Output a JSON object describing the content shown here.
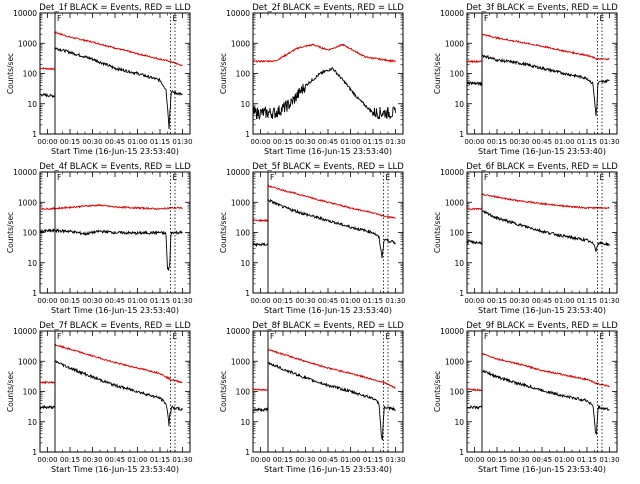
{
  "x_label": "Start Time (16-Jun-15 23:53:40)",
  "y_label": "Counts/sec",
  "x_ticks": [
    "00:00",
    "00:15",
    "00:30",
    "00:45",
    "01:00",
    "01:15",
    "01:30"
  ],
  "y_ticks": [
    "1",
    "10",
    "100",
    "1000",
    "10000"
  ],
  "marker_label": "F",
  "marker_label_end": "E",
  "colors": {
    "events": "#000000",
    "lld": "#e00000",
    "axis": "#000000"
  },
  "chart_data": [
    {
      "type": "line",
      "title": "Det_1f BLACK = Events, RED = LLD",
      "xlabel": "Start Time (16-Jun-15 23:53:40)",
      "ylabel": "Counts/sec",
      "x_unit": "minutes after 00:00",
      "xlim": [
        -5,
        95
      ],
      "ylim": [
        1,
        10000
      ],
      "log_y": true,
      "start_marker": 5,
      "end_markers": [
        82,
        85
      ],
      "series": [
        {
          "name": "LLD",
          "color": "#e00000",
          "x": [
            -5,
            4.9,
            5,
            15,
            30,
            45,
            60,
            75,
            82,
            90
          ],
          "y": [
            150,
            140,
            2300,
            1600,
            1100,
            700,
            450,
            300,
            250,
            180
          ]
        },
        {
          "name": "Events",
          "color": "#000000",
          "x": [
            -5,
            4.9,
            5,
            15,
            30,
            45,
            60,
            75,
            79,
            81,
            82.5,
            90
          ],
          "y": [
            20,
            18,
            700,
            500,
            300,
            150,
            100,
            60,
            30,
            2,
            25,
            20
          ]
        }
      ]
    },
    {
      "type": "line",
      "title": "Det_2f BLACK = Events, RED = LLD",
      "xlabel": "Start Time (16-Jun-15 23:53:40)",
      "ylabel": "Counts/sec",
      "x_unit": "minutes after 00:00",
      "xlim": [
        -5,
        95
      ],
      "ylim": [
        1,
        10000
      ],
      "log_y": true,
      "start_marker": null,
      "end_markers": [],
      "series": [
        {
          "name": "LLD",
          "color": "#e00000",
          "x": [
            -5,
            10,
            25,
            35,
            45,
            55,
            70,
            90
          ],
          "y": [
            250,
            260,
            700,
            900,
            600,
            900,
            350,
            250
          ]
        },
        {
          "name": "Events",
          "color": "#000000",
          "x": [
            -5,
            10,
            20,
            30,
            40,
            48,
            55,
            65,
            75,
            90
          ],
          "y": [
            5,
            5,
            10,
            40,
            100,
            150,
            60,
            15,
            5,
            5
          ]
        }
      ]
    },
    {
      "type": "line",
      "title": "Det_3f BLACK = Events, RED = LLD",
      "xlabel": "Start Time (16-Jun-15 23:53:40)",
      "ylabel": "Counts/sec",
      "x_unit": "minutes after 00:00",
      "xlim": [
        -5,
        95
      ],
      "ylim": [
        1,
        10000
      ],
      "log_y": true,
      "start_marker": 5,
      "end_markers": [
        82,
        85
      ],
      "series": [
        {
          "name": "LLD",
          "color": "#e00000",
          "x": [
            -5,
            4.9,
            5,
            15,
            30,
            45,
            60,
            75,
            82,
            90
          ],
          "y": [
            250,
            250,
            2000,
            1500,
            1100,
            800,
            550,
            400,
            300,
            300
          ]
        },
        {
          "name": "Events",
          "color": "#000000",
          "x": [
            -5,
            4.9,
            5,
            15,
            30,
            45,
            60,
            75,
            79,
            81,
            82.5,
            90
          ],
          "y": [
            50,
            45,
            400,
            280,
            220,
            150,
            100,
            70,
            45,
            4,
            50,
            60
          ]
        }
      ]
    },
    {
      "type": "line",
      "title": "Det_4f BLACK = Events, RED = LLD",
      "xlabel": "Start Time (16-Jun-15 23:53:40)",
      "ylabel": "Counts/sec",
      "x_unit": "minutes after 00:00",
      "xlim": [
        -5,
        95
      ],
      "ylim": [
        1,
        10000
      ],
      "log_y": true,
      "start_marker": 5,
      "end_markers": [
        82,
        85
      ],
      "series": [
        {
          "name": "LLD",
          "color": "#e00000",
          "x": [
            -5,
            5,
            15,
            25,
            35,
            45,
            60,
            75,
            82,
            90
          ],
          "y": [
            600,
            620,
            680,
            750,
            800,
            700,
            650,
            600,
            650,
            650
          ]
        },
        {
          "name": "Events",
          "color": "#000000",
          "x": [
            -5,
            5,
            15,
            25,
            35,
            45,
            60,
            75,
            79,
            80,
            81,
            82.5,
            90
          ],
          "y": [
            110,
            115,
            110,
            90,
            110,
            100,
            95,
            100,
            90,
            6,
            5,
            100,
            100
          ]
        }
      ]
    },
    {
      "type": "line",
      "title": "Det_5f BLACK = Events, RED = LLD",
      "xlabel": "Start Time (16-Jun-15 23:53:40)",
      "ylabel": "Counts/sec",
      "x_unit": "minutes after 00:00",
      "xlim": [
        -5,
        95
      ],
      "ylim": [
        1,
        10000
      ],
      "log_y": true,
      "start_marker": 5,
      "end_markers": [
        82,
        85
      ],
      "series": [
        {
          "name": "LLD",
          "color": "#e00000",
          "x": [
            -5,
            4.9,
            5,
            15,
            30,
            45,
            60,
            75,
            82,
            90
          ],
          "y": [
            250,
            250,
            3500,
            2500,
            1600,
            1000,
            650,
            450,
            350,
            300
          ]
        },
        {
          "name": "Events",
          "color": "#000000",
          "x": [
            -5,
            4.9,
            5,
            15,
            30,
            45,
            60,
            75,
            79,
            81,
            82.5,
            90
          ],
          "y": [
            40,
            40,
            1200,
            700,
            400,
            250,
            150,
            100,
            70,
            15,
            60,
            45
          ]
        }
      ]
    },
    {
      "type": "line",
      "title": "Det_6f BLACK = Events, RED = LLD",
      "xlabel": "Start Time (16-Jun-15 23:53:40)",
      "ylabel": "Counts/sec",
      "x_unit": "minutes after 00:00",
      "xlim": [
        -5,
        95
      ],
      "ylim": [
        1,
        10000
      ],
      "log_y": true,
      "start_marker": 5,
      "end_markers": [
        82,
        85
      ],
      "series": [
        {
          "name": "LLD",
          "color": "#e00000",
          "x": [
            -5,
            4.9,
            5,
            15,
            30,
            45,
            60,
            75,
            90
          ],
          "y": [
            600,
            600,
            1800,
            1500,
            1100,
            900,
            750,
            650,
            650
          ]
        },
        {
          "name": "Events",
          "color": "#000000",
          "x": [
            -5,
            4.9,
            5,
            15,
            30,
            45,
            60,
            75,
            80,
            81,
            82.5,
            90
          ],
          "y": [
            50,
            45,
            500,
            300,
            180,
            110,
            75,
            55,
            40,
            25,
            45,
            40
          ]
        }
      ]
    },
    {
      "type": "line",
      "title": "Det_7f BLACK = Events, RED = LLD",
      "xlabel": "Start Time (16-Jun-15 23:53:40)",
      "ylabel": "Counts/sec",
      "x_unit": "minutes after 00:00",
      "xlim": [
        -5,
        95
      ],
      "ylim": [
        1,
        10000
      ],
      "log_y": true,
      "start_marker": 5,
      "end_markers": [
        82,
        85
      ],
      "series": [
        {
          "name": "LLD",
          "color": "#e00000",
          "x": [
            -5,
            4.9,
            5,
            15,
            30,
            45,
            60,
            75,
            82,
            90
          ],
          "y": [
            200,
            200,
            3500,
            2500,
            1500,
            900,
            600,
            400,
            250,
            200
          ]
        },
        {
          "name": "Events",
          "color": "#000000",
          "x": [
            -5,
            4.9,
            5,
            15,
            30,
            45,
            60,
            75,
            79,
            81,
            82.5,
            90
          ],
          "y": [
            30,
            30,
            1000,
            600,
            300,
            160,
            100,
            60,
            40,
            10,
            30,
            25
          ]
        }
      ]
    },
    {
      "type": "line",
      "title": "Det_8f BLACK = Events, RED = LLD",
      "xlabel": "Start Time (16-Jun-15 23:53:40)",
      "ylabel": "Counts/sec",
      "x_unit": "minutes after 00:00",
      "xlim": [
        -5,
        95
      ],
      "ylim": [
        1,
        10000
      ],
      "log_y": true,
      "start_marker": 5,
      "end_markers": [
        82,
        85
      ],
      "series": [
        {
          "name": "LLD",
          "color": "#e00000",
          "x": [
            -5,
            4.9,
            5,
            15,
            30,
            45,
            60,
            75,
            82,
            90
          ],
          "y": [
            120,
            110,
            2500,
            1700,
            1000,
            600,
            400,
            250,
            200,
            130
          ]
        },
        {
          "name": "Events",
          "color": "#000000",
          "x": [
            -5,
            4.9,
            5,
            15,
            30,
            45,
            60,
            75,
            79,
            81,
            82.5,
            90
          ],
          "y": [
            25,
            25,
            900,
            550,
            280,
            160,
            100,
            60,
            40,
            2,
            30,
            25
          ]
        }
      ]
    },
    {
      "type": "line",
      "title": "Det_9f BLACK = Events, RED = LLD",
      "xlabel": "Start Time (16-Jun-15 23:53:40)",
      "ylabel": "Counts/sec",
      "x_unit": "minutes after 00:00",
      "xlim": [
        -5,
        95
      ],
      "ylim": [
        1,
        10000
      ],
      "log_y": true,
      "start_marker": 5,
      "end_markers": [
        82,
        85
      ],
      "series": [
        {
          "name": "LLD",
          "color": "#e00000",
          "x": [
            -5,
            4.9,
            5,
            15,
            30,
            45,
            60,
            75,
            82,
            90
          ],
          "y": [
            120,
            110,
            1800,
            1200,
            800,
            500,
            350,
            250,
            180,
            150
          ]
        },
        {
          "name": "Events",
          "color": "#000000",
          "x": [
            -5,
            4.9,
            5,
            15,
            30,
            45,
            60,
            75,
            79,
            81,
            82.5,
            90
          ],
          "y": [
            30,
            30,
            500,
            300,
            180,
            110,
            70,
            50,
            35,
            3,
            30,
            25
          ]
        }
      ]
    }
  ]
}
